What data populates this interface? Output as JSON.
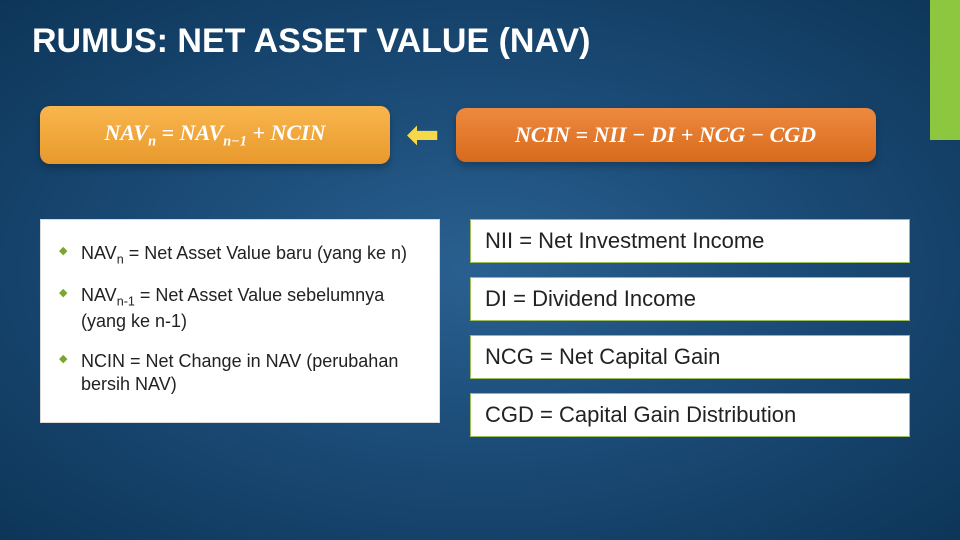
{
  "accent_color": "#8dc63f",
  "title": "RUMUS: NET ASSET VALUE (NAV)",
  "formula_left": {
    "bg_gradient": [
      "#f9b64e",
      "#e8992c"
    ],
    "parts": {
      "t1": "NAV",
      "s1": "n",
      "t2": " = NAV",
      "s2": "n−1",
      "t3": " + NCIN"
    }
  },
  "arrow_color": "#f5d94a",
  "formula_right": {
    "bg_gradient": [
      "#ed8a3f",
      "#d96a1c"
    ],
    "text": "NCIN = NII − DI + NCG − CGD"
  },
  "left_defs": [
    {
      "pre": "NAV",
      "sub": "n",
      "post": " = Net Asset Value baru (yang ke n)"
    },
    {
      "pre": "NAV",
      "sub": "n-1",
      "post": " = Net Asset Value sebelumnya (yang ke n-1)"
    },
    {
      "pre": "NCIN = Net Change in NAV (perubahan bersih NAV)",
      "sub": "",
      "post": ""
    }
  ],
  "right_defs": [
    "NII = Net Investment Income",
    "DI = Dividend Income",
    "NCG = Net Capital Gain",
    "CGD = Capital Gain Distribution"
  ]
}
